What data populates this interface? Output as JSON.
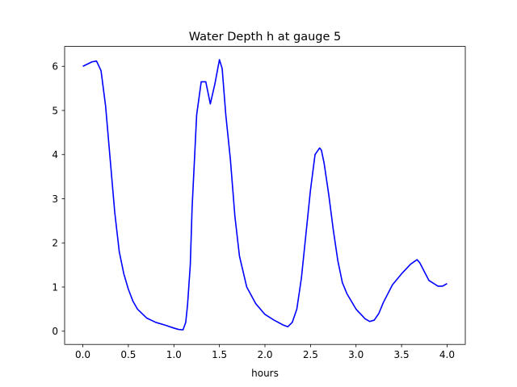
{
  "chart_data": {
    "type": "line",
    "title": "Water Depth h at gauge 5",
    "xlabel": "hours",
    "ylabel": "",
    "xlim": [
      -0.2,
      4.2
    ],
    "ylim": [
      -0.3,
      6.45
    ],
    "xticks": [
      0.0,
      0.5,
      1.0,
      1.5,
      2.0,
      2.5,
      3.0,
      3.5,
      4.0
    ],
    "xtick_labels": [
      "0.0",
      "0.5",
      "1.0",
      "1.5",
      "2.0",
      "2.5",
      "3.0",
      "3.5",
      "4.0"
    ],
    "yticks": [
      0,
      1,
      2,
      3,
      4,
      5,
      6
    ],
    "ytick_labels": [
      "0",
      "1",
      "2",
      "3",
      "4",
      "5",
      "6"
    ],
    "grid": false,
    "series": [
      {
        "color": "#0000ff",
        "x": [
          0.0,
          0.05,
          0.1,
          0.15,
          0.2,
          0.25,
          0.3,
          0.35,
          0.4,
          0.45,
          0.5,
          0.55,
          0.6,
          0.7,
          0.8,
          0.9,
          1.0,
          1.05,
          1.1,
          1.13,
          1.15,
          1.18,
          1.2,
          1.25,
          1.3,
          1.35,
          1.4,
          1.45,
          1.5,
          1.53,
          1.57,
          1.62,
          1.67,
          1.72,
          1.8,
          1.9,
          2.0,
          2.1,
          2.2,
          2.25,
          2.3,
          2.35,
          2.4,
          2.45,
          2.5,
          2.55,
          2.6,
          2.62,
          2.65,
          2.7,
          2.75,
          2.8,
          2.85,
          2.9,
          3.0,
          3.1,
          3.15,
          3.2,
          3.25,
          3.3,
          3.4,
          3.5,
          3.6,
          3.67,
          3.7,
          3.75,
          3.8,
          3.9,
          3.95,
          4.0
        ],
        "y": [
          6.0,
          6.05,
          6.1,
          6.12,
          5.9,
          5.1,
          3.9,
          2.7,
          1.8,
          1.3,
          0.95,
          0.68,
          0.5,
          0.3,
          0.2,
          0.14,
          0.07,
          0.04,
          0.03,
          0.2,
          0.6,
          1.5,
          2.8,
          4.9,
          5.65,
          5.65,
          5.15,
          5.6,
          6.15,
          5.95,
          4.9,
          3.9,
          2.6,
          1.7,
          1.0,
          0.62,
          0.38,
          0.25,
          0.14,
          0.1,
          0.2,
          0.5,
          1.2,
          2.2,
          3.2,
          4.0,
          4.15,
          4.1,
          3.8,
          3.1,
          2.3,
          1.6,
          1.1,
          0.85,
          0.5,
          0.28,
          0.22,
          0.25,
          0.4,
          0.65,
          1.05,
          1.3,
          1.52,
          1.62,
          1.55,
          1.35,
          1.15,
          1.02,
          1.02,
          1.08
        ]
      }
    ]
  }
}
